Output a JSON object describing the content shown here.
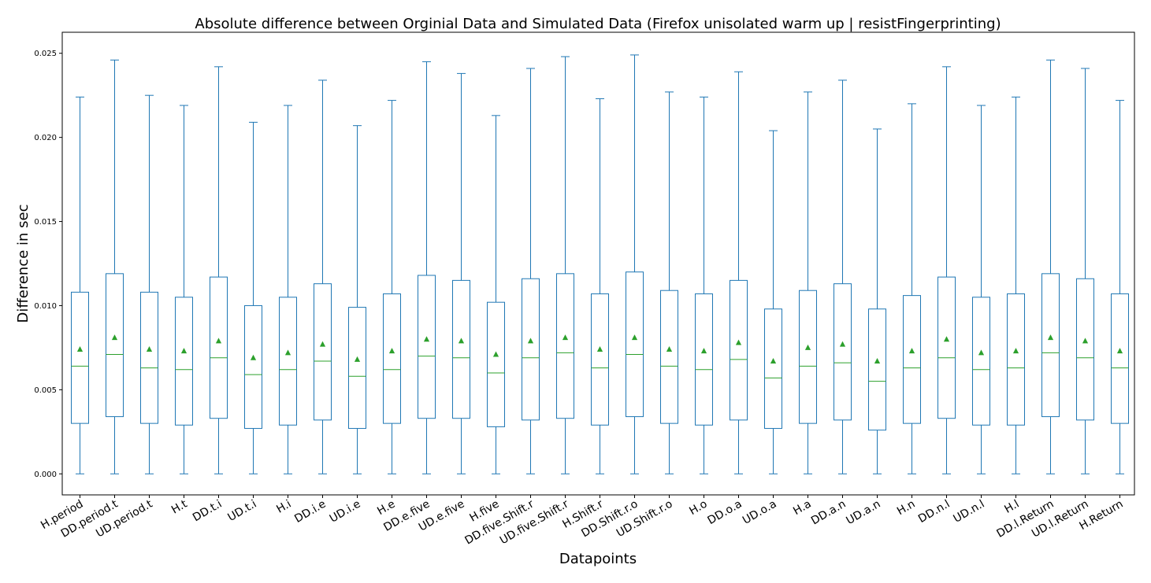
{
  "chart_data": {
    "type": "box",
    "title": "Absolute difference between Orginial Data and Simulated Data (Firefox unisolated warm up | resistFingerprinting)",
    "xlabel": "Datapoints",
    "ylabel": "Difference in sec",
    "ylim": [
      -0.00125,
      0.02625
    ],
    "yticks": [
      0.0,
      0.005,
      0.01,
      0.015,
      0.02,
      0.025
    ],
    "ytick_labels": [
      "0.000",
      "0.005",
      "0.010",
      "0.015",
      "0.020",
      "0.025"
    ],
    "grid": false,
    "colors": {
      "box": "#1f77b4",
      "median": "#2ca02c",
      "mean": "#2ca02c"
    },
    "categories": [
      "H.period",
      "DD.period.t",
      "UD.period.t",
      "H.t",
      "DD.t.i",
      "UD.t.i",
      "H.i",
      "DD.i.e",
      "UD.i.e",
      "H.e",
      "DD.e.five",
      "UD.e.five",
      "H.five",
      "DD.five.Shift.r",
      "UD.five.Shift.r",
      "H.Shift.r",
      "DD.Shift.r.o",
      "UD.Shift.r.o",
      "H.o",
      "DD.o.a",
      "UD.o.a",
      "H.a",
      "DD.a.n",
      "UD.a.n",
      "H.n",
      "DD.n.l",
      "UD.n.l",
      "H.l",
      "DD.l.Return",
      "UD.l.Return",
      "H.Return"
    ],
    "series": [
      {
        "min": 0,
        "q1": 0.003,
        "median": 0.0064,
        "q3": 0.0108,
        "max": 0.0224,
        "mean": 0.0074
      },
      {
        "min": 0,
        "q1": 0.0034,
        "median": 0.0071,
        "q3": 0.0119,
        "max": 0.0246,
        "mean": 0.0081
      },
      {
        "min": 0,
        "q1": 0.003,
        "median": 0.0063,
        "q3": 0.0108,
        "max": 0.0225,
        "mean": 0.0074
      },
      {
        "min": 0,
        "q1": 0.0029,
        "median": 0.0062,
        "q3": 0.0105,
        "max": 0.0219,
        "mean": 0.0073
      },
      {
        "min": 0,
        "q1": 0.0033,
        "median": 0.0069,
        "q3": 0.0117,
        "max": 0.0242,
        "mean": 0.0079
      },
      {
        "min": 0,
        "q1": 0.0027,
        "median": 0.0059,
        "q3": 0.01,
        "max": 0.0209,
        "mean": 0.0069
      },
      {
        "min": 0,
        "q1": 0.0029,
        "median": 0.0062,
        "q3": 0.0105,
        "max": 0.0219,
        "mean": 0.0072
      },
      {
        "min": 0,
        "q1": 0.0032,
        "median": 0.0067,
        "q3": 0.0113,
        "max": 0.0234,
        "mean": 0.0077
      },
      {
        "min": 0,
        "q1": 0.0027,
        "median": 0.0058,
        "q3": 0.0099,
        "max": 0.0207,
        "mean": 0.0068
      },
      {
        "min": 0,
        "q1": 0.003,
        "median": 0.0062,
        "q3": 0.0107,
        "max": 0.0222,
        "mean": 0.0073
      },
      {
        "min": 0,
        "q1": 0.0033,
        "median": 0.007,
        "q3": 0.0118,
        "max": 0.0245,
        "mean": 0.008
      },
      {
        "min": 0,
        "q1": 0.0033,
        "median": 0.0069,
        "q3": 0.0115,
        "max": 0.0238,
        "mean": 0.0079
      },
      {
        "min": 0,
        "q1": 0.0028,
        "median": 0.006,
        "q3": 0.0102,
        "max": 0.0213,
        "mean": 0.0071
      },
      {
        "min": 0,
        "q1": 0.0032,
        "median": 0.0069,
        "q3": 0.0116,
        "max": 0.0241,
        "mean": 0.0079
      },
      {
        "min": 0,
        "q1": 0.0033,
        "median": 0.0072,
        "q3": 0.0119,
        "max": 0.0248,
        "mean": 0.0081
      },
      {
        "min": 0,
        "q1": 0.0029,
        "median": 0.0063,
        "q3": 0.0107,
        "max": 0.0223,
        "mean": 0.0074
      },
      {
        "min": 0,
        "q1": 0.0034,
        "median": 0.0071,
        "q3": 0.012,
        "max": 0.0249,
        "mean": 0.0081
      },
      {
        "min": 0,
        "q1": 0.003,
        "median": 0.0064,
        "q3": 0.0109,
        "max": 0.0227,
        "mean": 0.0074
      },
      {
        "min": 0,
        "q1": 0.0029,
        "median": 0.0062,
        "q3": 0.0107,
        "max": 0.0224,
        "mean": 0.0073
      },
      {
        "min": 0,
        "q1": 0.0032,
        "median": 0.0068,
        "q3": 0.0115,
        "max": 0.0239,
        "mean": 0.0078
      },
      {
        "min": 0,
        "q1": 0.0027,
        "median": 0.0057,
        "q3": 0.0098,
        "max": 0.0204,
        "mean": 0.0067
      },
      {
        "min": 0,
        "q1": 0.003,
        "median": 0.0064,
        "q3": 0.0109,
        "max": 0.0227,
        "mean": 0.0075
      },
      {
        "min": 0,
        "q1": 0.0032,
        "median": 0.0066,
        "q3": 0.0113,
        "max": 0.0234,
        "mean": 0.0077
      },
      {
        "min": 0,
        "q1": 0.0026,
        "median": 0.0055,
        "q3": 0.0098,
        "max": 0.0205,
        "mean": 0.0067
      },
      {
        "min": 0,
        "q1": 0.003,
        "median": 0.0063,
        "q3": 0.0106,
        "max": 0.022,
        "mean": 0.0073
      },
      {
        "min": 0,
        "q1": 0.0033,
        "median": 0.0069,
        "q3": 0.0117,
        "max": 0.0242,
        "mean": 0.008
      },
      {
        "min": 0,
        "q1": 0.0029,
        "median": 0.0062,
        "q3": 0.0105,
        "max": 0.0219,
        "mean": 0.0072
      },
      {
        "min": 0,
        "q1": 0.0029,
        "median": 0.0063,
        "q3": 0.0107,
        "max": 0.0224,
        "mean": 0.0073
      },
      {
        "min": 0,
        "q1": 0.0034,
        "median": 0.0072,
        "q3": 0.0119,
        "max": 0.0246,
        "mean": 0.0081
      },
      {
        "min": 0,
        "q1": 0.0032,
        "median": 0.0069,
        "q3": 0.0116,
        "max": 0.0241,
        "mean": 0.0079
      },
      {
        "min": 0,
        "q1": 0.003,
        "median": 0.0063,
        "q3": 0.0107,
        "max": 0.0222,
        "mean": 0.0073
      }
    ]
  }
}
